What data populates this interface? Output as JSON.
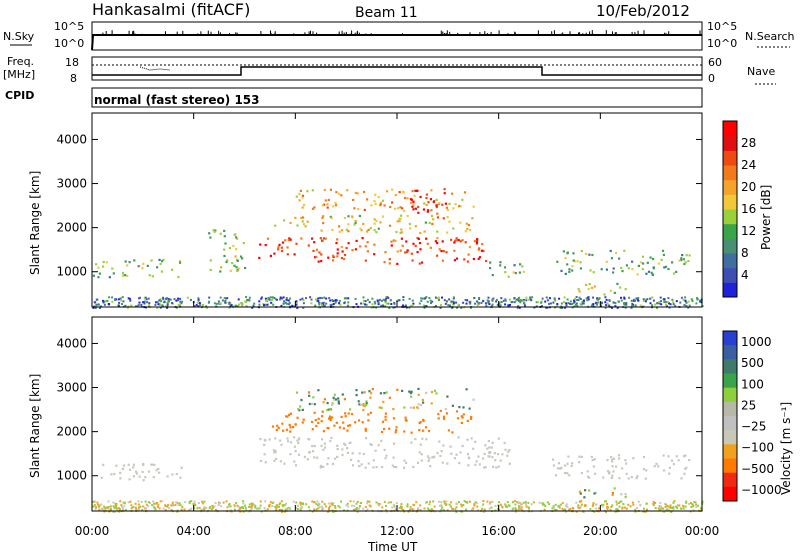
{
  "header": {
    "station": "Hankasalmi (fitACF)",
    "beam": "Beam 11",
    "date": "10/Feb/2012"
  },
  "top_panels": {
    "nsky_label": "N.Sky",
    "nsearch_label": "N.Search",
    "noise_ticks": [
      "10^5",
      "10^0"
    ],
    "freq_label": "Freq.",
    "freq_unit": "[MHz]",
    "freq_ticks": [
      "18",
      "8"
    ],
    "nave_label": "Nave",
    "nave_ticks": [
      "60",
      "0"
    ],
    "cpid_label": "CPID",
    "cpid_text": "normal (fast stereo) 153"
  },
  "colors": {
    "power_scale": [
      "#1f22d8",
      "#3e4fb4",
      "#3f6e9f",
      "#488f73",
      "#3aa44a",
      "#9bd03a",
      "#f0c83a",
      "#f4a42a",
      "#f07a1c",
      "#ee4a14",
      "#e01010",
      "#ff0000"
    ],
    "velocity_scale": [
      "#ff0000",
      "#f02a10",
      "#ff7a00",
      "#f2a020",
      "#c8c8b8",
      "#c0c0c0",
      "#b8b8a8",
      "#8ecf3c",
      "#3aa44a",
      "#3f7a6a",
      "#3a5fa0",
      "#2a40d0"
    ],
    "gray": "#c8c8c0"
  },
  "chart_data": [
    {
      "type": "heatmap",
      "title": "Power",
      "ylabel": "Slant Range [km]",
      "xlabel": "Time UT",
      "x_ticks": [
        "00:00",
        "04:00",
        "08:00",
        "12:00",
        "16:00",
        "20:00",
        "00:00"
      ],
      "y_ticks": [
        "1000",
        "2000",
        "3000",
        "4000"
      ],
      "xlim": [
        0,
        24
      ],
      "ylim": [
        200,
        4600
      ],
      "colorbar_label": "Power [dB]",
      "colorbar_ticks": [
        "4",
        "8",
        "12",
        "16",
        "20",
        "24",
        "28"
      ],
      "colorbar_range": [
        0,
        32
      ],
      "regions": [
        {
          "t0": 0.0,
          "t1": 3.6,
          "r0": 900,
          "r1": 1300,
          "value": 12
        },
        {
          "t0": 4.5,
          "t1": 6.0,
          "r0": 1000,
          "r1": 2000,
          "value": 14
        },
        {
          "t0": 6.5,
          "t1": 15.5,
          "r0": 1200,
          "r1": 1800,
          "value": 26
        },
        {
          "t0": 7.0,
          "t1": 15.0,
          "r0": 1900,
          "r1": 2300,
          "value": 18
        },
        {
          "t0": 8.0,
          "t1": 15.0,
          "r0": 2400,
          "r1": 2900,
          "value": 20
        },
        {
          "t0": 12.5,
          "t1": 14.0,
          "r0": 2200,
          "r1": 2900,
          "value": 28
        },
        {
          "t0": 15.5,
          "t1": 17.0,
          "r0": 900,
          "r1": 1300,
          "value": 12
        },
        {
          "t0": 18.0,
          "t1": 23.5,
          "r0": 950,
          "r1": 1500,
          "value": 12
        },
        {
          "t0": 19.0,
          "t1": 21.0,
          "r0": 500,
          "r1": 750,
          "value": 16
        }
      ]
    },
    {
      "type": "heatmap",
      "title": "Velocity",
      "ylabel": "Slant Range [km]",
      "xlabel": "Time UT",
      "x_ticks": [
        "00:00",
        "04:00",
        "08:00",
        "12:00",
        "16:00",
        "20:00",
        "00:00"
      ],
      "y_ticks": [
        "1000",
        "2000",
        "3000",
        "4000"
      ],
      "xlim": [
        0,
        24
      ],
      "ylim": [
        200,
        4600
      ],
      "colorbar_label": "Velocity [m s⁻¹]",
      "colorbar_ticks": [
        "1000",
        "500",
        "100",
        "25",
        "−25",
        "−100",
        "−500",
        "−1000"
      ],
      "regions": [
        {
          "t0": 0.0,
          "t1": 3.6,
          "r0": 900,
          "r1": 1300,
          "value": 0
        },
        {
          "t0": 6.5,
          "t1": 16.5,
          "r0": 1200,
          "r1": 1900,
          "value": 0
        },
        {
          "t0": 7.0,
          "t1": 15.0,
          "r0": 2000,
          "r1": 2500,
          "value": -300
        },
        {
          "t0": 8.0,
          "t1": 15.0,
          "r0": 2500,
          "r1": 3000,
          "value": 80
        },
        {
          "t0": 18.0,
          "t1": 23.5,
          "r0": 950,
          "r1": 1500,
          "value": 0
        },
        {
          "t0": 19.0,
          "t1": 21.0,
          "r0": 500,
          "r1": 750,
          "value": 60
        }
      ]
    }
  ]
}
